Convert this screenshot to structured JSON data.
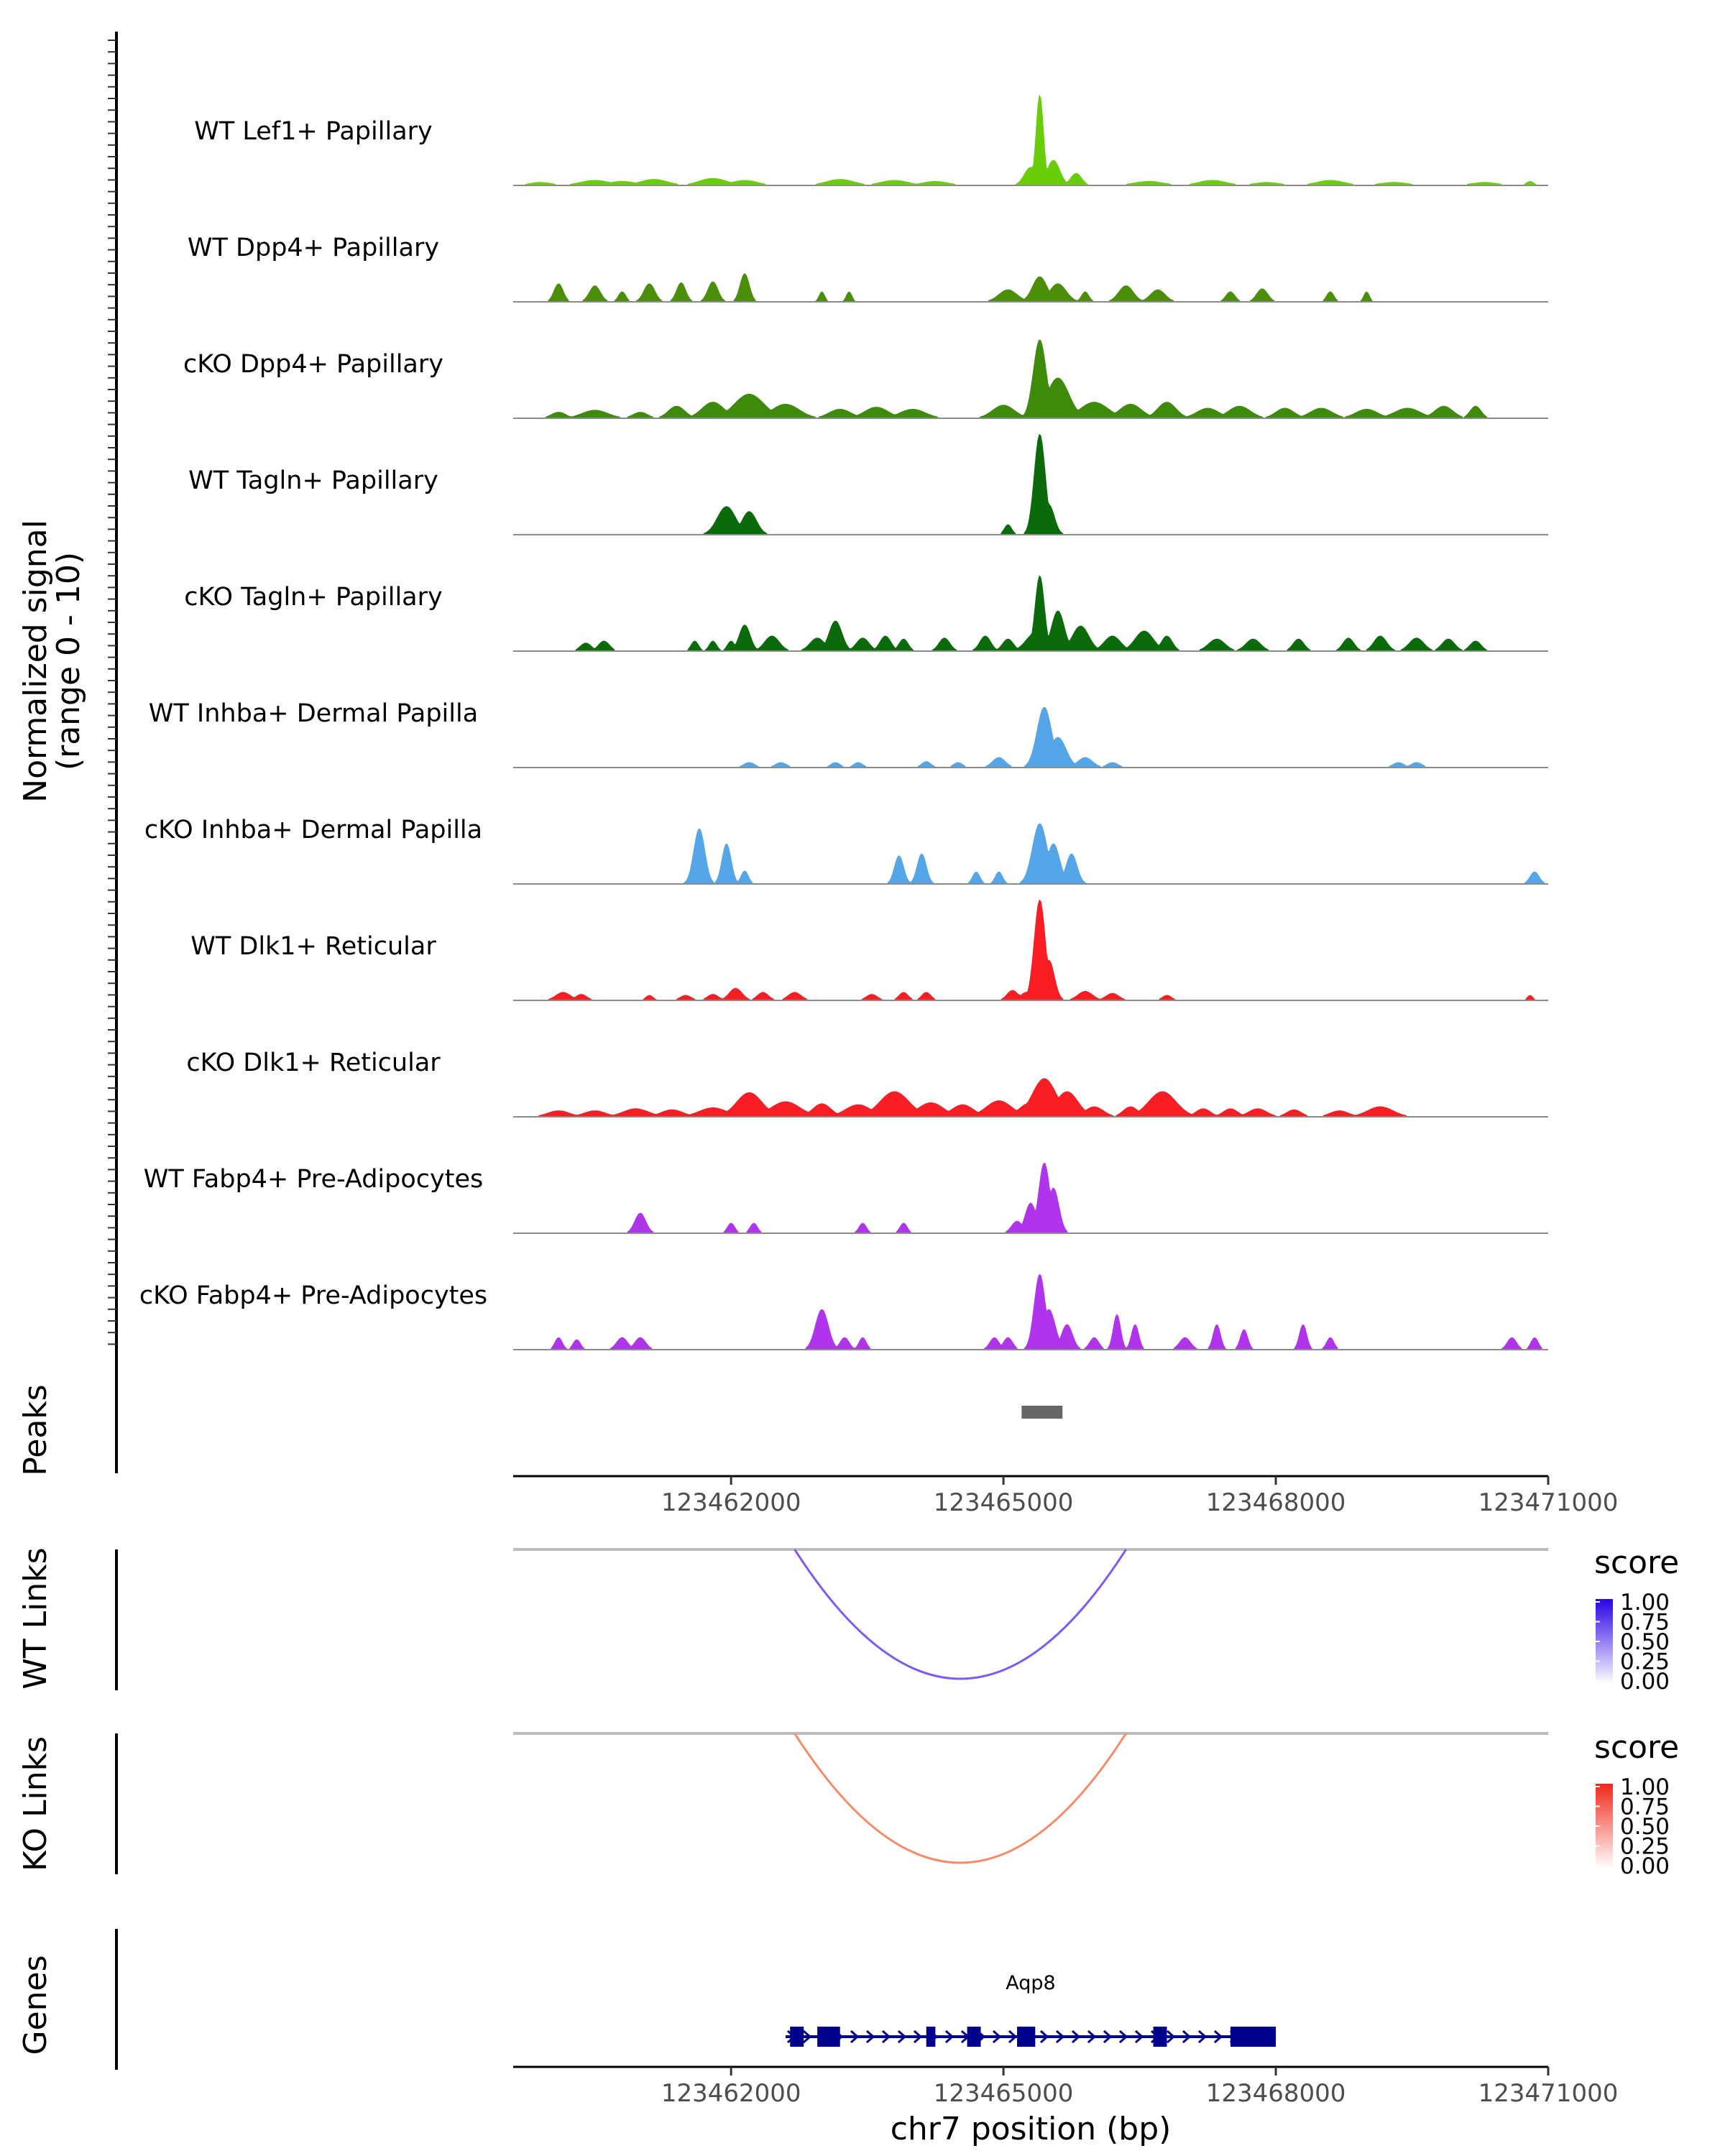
{
  "chart_data": {
    "type": "area",
    "ylabel_line1": "Normalized signal",
    "ylabel_line2": "(range 0 - 10)",
    "xlabel": "chr7 position (bp)",
    "xlim": [
      123459600,
      123471000
    ],
    "ylim": [
      0,
      10
    ],
    "xticks": [
      123462000,
      123465000,
      123468000,
      123471000
    ],
    "xtick_labels": [
      "123462000",
      "123465000",
      "123468000",
      "123471000"
    ],
    "tracks": [
      {
        "name": "WT Lef1+ Papillary",
        "color": "#6ACD0A",
        "peaks": [
          [
            123459900,
            0.3,
            120
          ],
          [
            123460500,
            0.5,
            160
          ],
          [
            123460800,
            0.4,
            150
          ],
          [
            123461150,
            0.6,
            150
          ],
          [
            123461800,
            0.7,
            150
          ],
          [
            123462150,
            0.5,
            140
          ],
          [
            123463200,
            0.6,
            150
          ],
          [
            123463800,
            0.5,
            150
          ],
          [
            123464250,
            0.4,
            140
          ],
          [
            123465300,
            1.8,
            70
          ],
          [
            123465400,
            9.0,
            40
          ],
          [
            123465550,
            2.5,
            70
          ],
          [
            123465800,
            1.2,
            60
          ],
          [
            123466600,
            0.4,
            160
          ],
          [
            123467300,
            0.5,
            150
          ],
          [
            123467900,
            0.3,
            140
          ],
          [
            123468600,
            0.5,
            150
          ],
          [
            123469300,
            0.3,
            150
          ],
          [
            123470300,
            0.3,
            140
          ],
          [
            123470800,
            0.4,
            40
          ]
        ]
      },
      {
        "name": "WT Dpp4+ Papillary",
        "color": "#4A8E0A",
        "peaks": [
          [
            123460100,
            1.8,
            50
          ],
          [
            123460500,
            1.6,
            60
          ],
          [
            123460800,
            1.0,
            40
          ],
          [
            123461100,
            1.8,
            60
          ],
          [
            123461450,
            1.9,
            50
          ],
          [
            123461800,
            2.0,
            55
          ],
          [
            123462150,
            2.8,
            50
          ],
          [
            123463000,
            1.0,
            30
          ],
          [
            123463300,
            1.0,
            30
          ],
          [
            123465050,
            1.2,
            100
          ],
          [
            123465400,
            2.5,
            80
          ],
          [
            123465600,
            1.8,
            90
          ],
          [
            123465900,
            1.0,
            40
          ],
          [
            123466350,
            1.6,
            80
          ],
          [
            123466700,
            1.2,
            80
          ],
          [
            123467500,
            1.0,
            50
          ],
          [
            123467850,
            1.3,
            60
          ],
          [
            123468600,
            1.0,
            40
          ],
          [
            123469000,
            1.0,
            30
          ]
        ]
      },
      {
        "name": "cKO Dpp4+ Papillary",
        "color": "#3E8A0A",
        "peaks": [
          [
            123460100,
            0.6,
            80
          ],
          [
            123460500,
            0.8,
            140
          ],
          [
            123461000,
            0.6,
            80
          ],
          [
            123461400,
            1.2,
            90
          ],
          [
            123461800,
            1.6,
            120
          ],
          [
            123462200,
            2.4,
            160
          ],
          [
            123462600,
            1.4,
            150
          ],
          [
            123463200,
            0.9,
            120
          ],
          [
            123463600,
            1.1,
            130
          ],
          [
            123464000,
            0.9,
            140
          ],
          [
            123465000,
            1.3,
            120
          ],
          [
            123465400,
            7.8,
            70
          ],
          [
            123465600,
            4.0,
            120
          ],
          [
            123466000,
            1.6,
            150
          ],
          [
            123466400,
            1.4,
            120
          ],
          [
            123466800,
            1.6,
            100
          ],
          [
            123467250,
            1.0,
            120
          ],
          [
            123467600,
            1.2,
            120
          ],
          [
            123468100,
            1.0,
            100
          ],
          [
            123468500,
            1.0,
            120
          ],
          [
            123469000,
            0.9,
            120
          ],
          [
            123469450,
            1.0,
            140
          ],
          [
            123469850,
            1.2,
            100
          ],
          [
            123470200,
            1.2,
            60
          ]
        ]
      },
      {
        "name": "WT Tagln+ Papillary",
        "color": "#0B6B0A",
        "peaks": [
          [
            123461950,
            2.8,
            100
          ],
          [
            123462200,
            2.3,
            80
          ],
          [
            123465050,
            1.0,
            40
          ],
          [
            123465450,
            1.0,
            40
          ],
          [
            123465400,
            10.0,
            60
          ],
          [
            123465500,
            3.0,
            60
          ]
        ]
      },
      {
        "name": "cKO Tagln+ Papillary",
        "color": "#0B6B0A",
        "peaks": [
          [
            123460400,
            0.8,
            60
          ],
          [
            123460600,
            1.0,
            60
          ],
          [
            123461600,
            1.0,
            40
          ],
          [
            123461800,
            1.0,
            40
          ],
          [
            123462000,
            1.0,
            40
          ],
          [
            123462150,
            2.6,
            60
          ],
          [
            123462450,
            1.5,
            80
          ],
          [
            123462950,
            1.3,
            80
          ],
          [
            123463150,
            3.0,
            70
          ],
          [
            123463450,
            1.3,
            70
          ],
          [
            123463700,
            1.5,
            60
          ],
          [
            123463900,
            1.2,
            50
          ],
          [
            123464350,
            1.3,
            60
          ],
          [
            123464800,
            1.5,
            60
          ],
          [
            123465050,
            1.2,
            60
          ],
          [
            123465350,
            1.8,
            100
          ],
          [
            123465400,
            7.5,
            50
          ],
          [
            123465600,
            4.0,
            70
          ],
          [
            123465850,
            2.5,
            90
          ],
          [
            123466200,
            1.5,
            90
          ],
          [
            123466550,
            2.0,
            100
          ],
          [
            123466800,
            1.5,
            60
          ],
          [
            123467350,
            1.2,
            90
          ],
          [
            123467750,
            1.2,
            80
          ],
          [
            123468250,
            1.2,
            60
          ],
          [
            123468800,
            1.3,
            60
          ],
          [
            123469150,
            1.5,
            70
          ],
          [
            123469550,
            1.3,
            80
          ],
          [
            123469900,
            1.2,
            70
          ],
          [
            123470200,
            1.0,
            60
          ]
        ]
      },
      {
        "name": "WT Inhba+ Dermal Papilla",
        "color": "#55A6E8",
        "peaks": [
          [
            123462200,
            0.5,
            60
          ],
          [
            123462550,
            0.5,
            60
          ],
          [
            123463150,
            0.5,
            50
          ],
          [
            123463400,
            0.5,
            50
          ],
          [
            123464150,
            0.6,
            50
          ],
          [
            123464500,
            0.5,
            50
          ],
          [
            123464950,
            1.0,
            70
          ],
          [
            123465400,
            0.5,
            60
          ],
          [
            123465650,
            0.5,
            60
          ],
          [
            123465450,
            6.0,
            80
          ],
          [
            123465600,
            3.0,
            90
          ],
          [
            123465900,
            1.0,
            80
          ],
          [
            123466200,
            0.5,
            60
          ],
          [
            123469350,
            0.5,
            60
          ],
          [
            123469550,
            0.5,
            60
          ]
        ]
      },
      {
        "name": "cKO Inhba+ Dermal Papilla",
        "color": "#55A6E8",
        "peaks": [
          [
            123461650,
            5.5,
            60
          ],
          [
            123461950,
            4.0,
            50
          ],
          [
            123462150,
            1.3,
            40
          ],
          [
            123463850,
            2.8,
            50
          ],
          [
            123464100,
            3.0,
            50
          ],
          [
            123464700,
            1.2,
            40
          ],
          [
            123464950,
            1.2,
            40
          ],
          [
            123465400,
            6.0,
            80
          ],
          [
            123465550,
            4.0,
            70
          ],
          [
            123465750,
            3.0,
            60
          ],
          [
            123470850,
            1.2,
            50
          ]
        ]
      },
      {
        "name": "WT Dlk1+ Reticular",
        "color": "#F81E24",
        "peaks": [
          [
            123460150,
            0.8,
            80
          ],
          [
            123460350,
            0.6,
            60
          ],
          [
            123461100,
            0.5,
            40
          ],
          [
            123461500,
            0.5,
            60
          ],
          [
            123461800,
            0.6,
            60
          ],
          [
            123462050,
            1.2,
            70
          ],
          [
            123462350,
            0.8,
            60
          ],
          [
            123462700,
            0.8,
            70
          ],
          [
            123463550,
            0.6,
            60
          ],
          [
            123463900,
            0.8,
            50
          ],
          [
            123464150,
            0.8,
            50
          ],
          [
            123465150,
            0.6,
            60
          ],
          [
            123465250,
            0.8,
            60
          ],
          [
            123465100,
            1.0,
            60
          ],
          [
            123465400,
            10.0,
            60
          ],
          [
            123465500,
            4.0,
            60
          ],
          [
            123465900,
            0.9,
            80
          ],
          [
            123466200,
            0.7,
            70
          ],
          [
            123466800,
            0.5,
            50
          ],
          [
            123470800,
            0.5,
            30
          ]
        ]
      },
      {
        "name": "cKO Dlk1+ Reticular",
        "color": "#F81E24",
        "peaks": [
          [
            123460100,
            0.6,
            120
          ],
          [
            123460500,
            0.6,
            120
          ],
          [
            123460950,
            0.8,
            140
          ],
          [
            123461350,
            0.7,
            120
          ],
          [
            123461800,
            0.9,
            150
          ],
          [
            123462200,
            2.4,
            140
          ],
          [
            123462600,
            1.5,
            160
          ],
          [
            123463000,
            1.3,
            100
          ],
          [
            123463400,
            1.2,
            140
          ],
          [
            123463800,
            2.5,
            160
          ],
          [
            123464200,
            1.4,
            140
          ],
          [
            123464550,
            1.2,
            120
          ],
          [
            123464950,
            1.6,
            140
          ],
          [
            123465300,
            1.4,
            120
          ],
          [
            123465450,
            3.8,
            130
          ],
          [
            123465700,
            2.5,
            120
          ],
          [
            123466000,
            1.0,
            100
          ],
          [
            123466400,
            1.0,
            80
          ],
          [
            123466750,
            2.5,
            150
          ],
          [
            123467200,
            0.8,
            80
          ],
          [
            123467500,
            0.8,
            80
          ],
          [
            123467800,
            0.8,
            100
          ],
          [
            123468200,
            0.7,
            80
          ],
          [
            123468700,
            0.6,
            100
          ],
          [
            123469150,
            1.0,
            140
          ]
        ]
      },
      {
        "name": "WT Fabp4+ Pre-Adipocytes",
        "color": "#B034EC",
        "peaks": [
          [
            123461000,
            2.0,
            60
          ],
          [
            123462000,
            1.0,
            40
          ],
          [
            123462250,
            1.0,
            40
          ],
          [
            123463450,
            1.0,
            40
          ],
          [
            123463900,
            1.0,
            40
          ],
          [
            123465150,
            1.2,
            60
          ],
          [
            123465450,
            7.0,
            60
          ],
          [
            123465550,
            4.5,
            60
          ],
          [
            123465300,
            3.0,
            60
          ]
        ]
      },
      {
        "name": "cKO Fabp4+ Pre-Adipocytes",
        "color": "#B034EC",
        "peaks": [
          [
            123460100,
            1.2,
            40
          ],
          [
            123460300,
            1.0,
            40
          ],
          [
            123460800,
            1.2,
            60
          ],
          [
            123461000,
            1.2,
            60
          ],
          [
            123463000,
            4.0,
            70
          ],
          [
            123463250,
            1.2,
            50
          ],
          [
            123463450,
            1.2,
            40
          ],
          [
            123464900,
            1.2,
            50
          ],
          [
            123465050,
            1.2,
            50
          ],
          [
            123465400,
            7.5,
            60
          ],
          [
            123465500,
            4.0,
            70
          ],
          [
            123465700,
            2.5,
            60
          ],
          [
            123466000,
            1.2,
            50
          ],
          [
            123466250,
            3.5,
            40
          ],
          [
            123466450,
            2.5,
            40
          ],
          [
            123467000,
            1.2,
            60
          ],
          [
            123467350,
            2.5,
            40
          ],
          [
            123467650,
            2.0,
            40
          ],
          [
            123468300,
            2.5,
            40
          ],
          [
            123468600,
            1.2,
            40
          ],
          [
            123470600,
            1.2,
            50
          ],
          [
            123470850,
            1.2,
            40
          ]
        ]
      }
    ],
    "peaks_track": {
      "label": "Peaks",
      "regions": [
        [
          123465200,
          123465650
        ]
      ],
      "color": "#666666"
    },
    "links": [
      {
        "label": "WT Links",
        "legend_title": "score",
        "legend_ticks": [
          "1.00",
          "0.75",
          "0.50",
          "0.25",
          "0.00"
        ],
        "color": "#7F5AF0",
        "legend_high": "#2B00E6",
        "arc": [
          123462700,
          123466350
        ],
        "score": 0.6
      },
      {
        "label": "KO Links",
        "legend_title": "score",
        "legend_ticks": [
          "1.00",
          "0.75",
          "0.50",
          "0.25",
          "0.00"
        ],
        "color": "#F48B6A",
        "legend_high": "#F0281A",
        "arc": [
          123462700,
          123466350
        ],
        "score": 0.55
      }
    ],
    "genes": {
      "label": "Genes",
      "gene_name": "Aqp8",
      "color": "#00008B",
      "span": [
        123462600,
        123468000
      ],
      "exons": [
        [
          123462650,
          123462800
        ],
        [
          123462950,
          123463200
        ],
        [
          123464150,
          123464250
        ],
        [
          123464600,
          123464750
        ],
        [
          123465150,
          123465350
        ],
        [
          123466650,
          123466800
        ],
        [
          123467500,
          123468000
        ]
      ]
    }
  }
}
